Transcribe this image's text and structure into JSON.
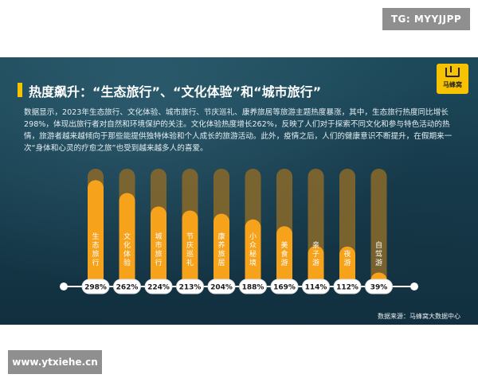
{
  "tg_badge": "TG: MYYJJPP",
  "logo_text": "马蜂窝",
  "title": "热度飙升：“生态旅行”、“文化体验”和“城市旅行”",
  "description": "数据显示，2023年生态旅行、文化体验、城市旅行、节庆巡礼、康养旅居等旅游主题热度暴涨，其中，生态旅行热度同比增长298%，体现出旅行者对自然和环境保护的关注。文化体验热度增长262%，反映了人们对于探索不同文化和参与特色活动的热情，旅游者越来越倾向于那些能提供独特体验和个人成长的旅游活动。此外，疫情之后，人们的健康意识不断提升，在假期来一次“身体和心灵的疗愈之旅”也受到越来越多人的喜爱。",
  "source": "数据来源：马蜂窝大数据中心",
  "watermark": "www.ytxiehe.cn",
  "colors": {
    "bar_fill": "#f7a21b",
    "bar_track": "#8a6a2a",
    "axis": "#ffffff",
    "label_text": "#ffffff",
    "value_text": "#1a1a1a",
    "accent": "#f7c300"
  },
  "chart_data": {
    "type": "bar",
    "orientation": "vertical",
    "categories": [
      "生态旅行",
      "文化体验",
      "城市旅行",
      "节庆巡礼",
      "康养旅居",
      "小众秘境",
      "美食游",
      "亲子游",
      "夜游",
      "自驾游"
    ],
    "values": [
      298,
      262,
      224,
      213,
      204,
      188,
      169,
      114,
      112,
      39
    ],
    "value_labels": [
      "298%",
      "262%",
      "224%",
      "213%",
      "204%",
      "188%",
      "169%",
      "114%",
      "112%",
      "39%"
    ],
    "unit": "%",
    "ylim": [
      0,
      330
    ]
  }
}
